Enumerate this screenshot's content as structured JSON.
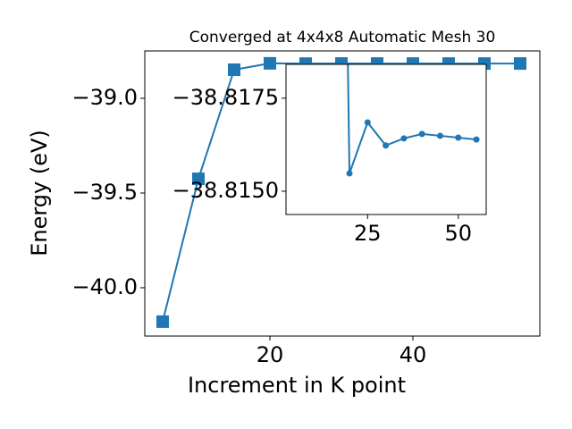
{
  "chart_data": {
    "type": "line",
    "title": "Converged at 4x4x8 Automatic Mesh 30",
    "x_label": "Increment in K point",
    "y_label": "Energy (eV)",
    "x": [
      5,
      10,
      15,
      20,
      25,
      30,
      35,
      40,
      45,
      50,
      55
    ],
    "series": [
      {
        "color": "#1f77b4",
        "values": [
          -40.179,
          -39.425,
          -38.849,
          -38.81548,
          -38.81685,
          -38.81623,
          -38.81642,
          -38.81654,
          -38.81649,
          -38.81644,
          -38.81639
        ]
      }
    ],
    "xlim": [
      2.5,
      57.75
    ],
    "ylim": [
      -40.255,
      -38.75
    ],
    "xticks": [
      20,
      40
    ],
    "yticks": [
      {
        "value": -40.0,
        "label": "−40.0"
      },
      {
        "value": -39.5,
        "label": "−39.5"
      },
      {
        "value": -39.0,
        "label": "−39.0"
      }
    ],
    "inset": {
      "xlim": [
        2.5,
        57.7
      ],
      "ylim": [
        -38.814375,
        -38.81841
      ],
      "xticks": [
        25,
        50
      ],
      "yticks": [
        {
          "value": -38.815,
          "label": "−38.8150"
        },
        {
          "value": -38.8175,
          "label": "−38.8175"
        }
      ]
    }
  }
}
